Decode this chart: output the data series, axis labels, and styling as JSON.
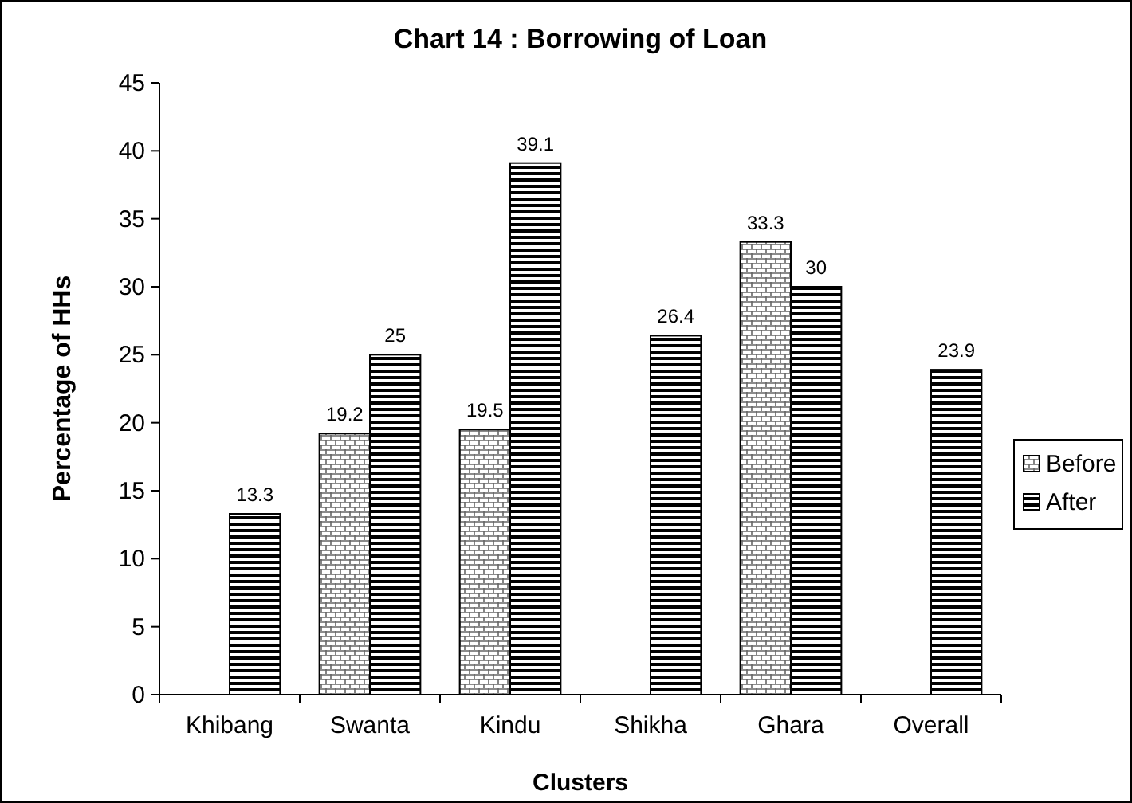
{
  "chart_data": {
    "type": "bar",
    "title": "Chart 14 : Borrowing of Loan",
    "xlabel": "Clusters",
    "ylabel": "Percentage of HHs",
    "categories": [
      "Khibang",
      "Swanta",
      "Kindu",
      "Shikha",
      "Ghara",
      "Overall"
    ],
    "series": [
      {
        "name": "Before",
        "color": "#000000",
        "values": [
          null,
          19.2,
          19.5,
          null,
          33.3,
          null
        ]
      },
      {
        "name": "After",
        "color": "#000000",
        "values": [
          13.3,
          25,
          39.1,
          26.4,
          30,
          23.9
        ]
      }
    ],
    "ylim": [
      0,
      45
    ],
    "yticks": [
      0,
      5,
      10,
      15,
      20,
      25,
      30,
      35,
      40,
      45
    ],
    "data_labels": true,
    "legend": "right",
    "grid": false
  }
}
